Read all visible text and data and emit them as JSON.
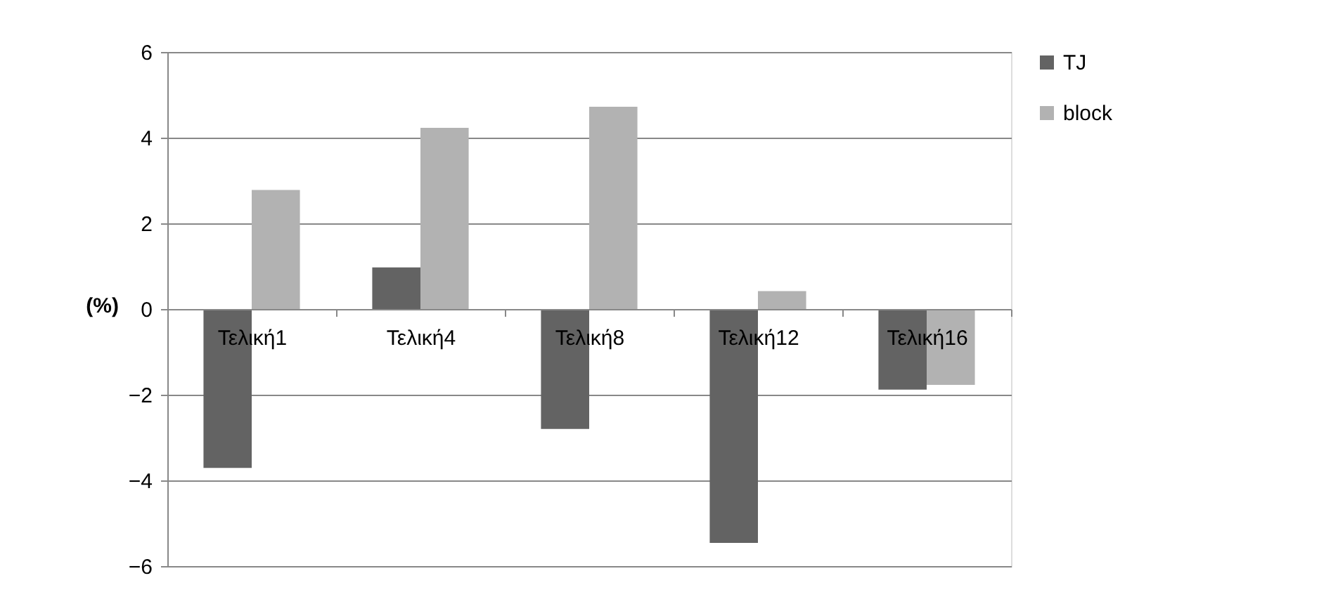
{
  "chart_data": {
    "type": "bar",
    "ylabel": "(%)",
    "categories": [
      "Τελική1",
      "Τελική4",
      "Τελική8",
      "Τελική12",
      "Τελική16"
    ],
    "series": [
      {
        "name": "TJ",
        "color": "#636363",
        "values": [
          -3.71,
          0.97,
          -2.8,
          -5.46,
          -1.88
        ]
      },
      {
        "name": "block",
        "color": "#b2b2b2",
        "values": [
          2.78,
          4.23,
          4.72,
          0.42,
          -1.77
        ]
      }
    ],
    "ylim": [
      -6,
      6
    ],
    "yticks": [
      -6,
      -4,
      -2,
      0,
      2,
      4,
      6
    ],
    "grid": "y",
    "legend": "right"
  }
}
